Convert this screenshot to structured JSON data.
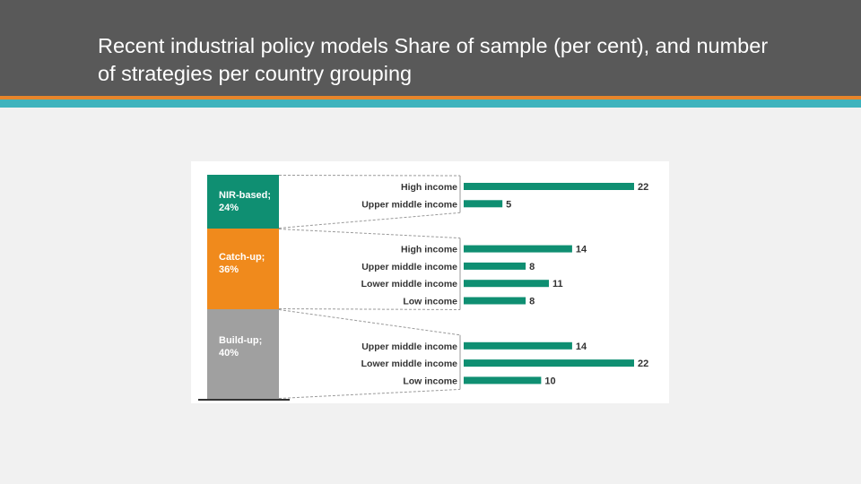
{
  "slide": {
    "title": "Recent industrial policy models Share of sample (per cent), and number of strategies per country grouping"
  },
  "colors": {
    "header_bg": "#595959",
    "stripe_orange": "#e7852b",
    "stripe_teal": "#3fb3bd",
    "bar": "#0f8f72",
    "nir": "#0f8f72",
    "catch_up": "#f08a1c",
    "build_up": "#a0a0a0"
  },
  "chart_data": {
    "type": "bar",
    "orientation": "horizontal",
    "title": "",
    "xlim": [
      0,
      22
    ],
    "stacked_share": [
      {
        "label_line1": "NIR-based;",
        "label_line2": "24%",
        "value": 24,
        "color": "#0f8f72"
      },
      {
        "label_line1": "Catch-up;",
        "label_line2": "36%",
        "value": 36,
        "color": "#f08a1c"
      },
      {
        "label_line1": "Build-up;",
        "label_line2": "40%",
        "value": 40,
        "color": "#a0a0a0"
      }
    ],
    "groups": [
      {
        "model": "NIR-based",
        "bars": [
          {
            "category": "High income",
            "value": 22
          },
          {
            "category": "Upper middle income",
            "value": 5
          }
        ]
      },
      {
        "model": "Catch-up",
        "bars": [
          {
            "category": "High income",
            "value": 14
          },
          {
            "category": "Upper middle income",
            "value": 8
          },
          {
            "category": "Lower middle income",
            "value": 11
          },
          {
            "category": "Low income",
            "value": 8
          }
        ]
      },
      {
        "model": "Build-up",
        "bars": [
          {
            "category": "Upper middle income",
            "value": 14
          },
          {
            "category": "Lower middle income",
            "value": 22
          },
          {
            "category": "Low income",
            "value": 10
          }
        ]
      }
    ]
  }
}
